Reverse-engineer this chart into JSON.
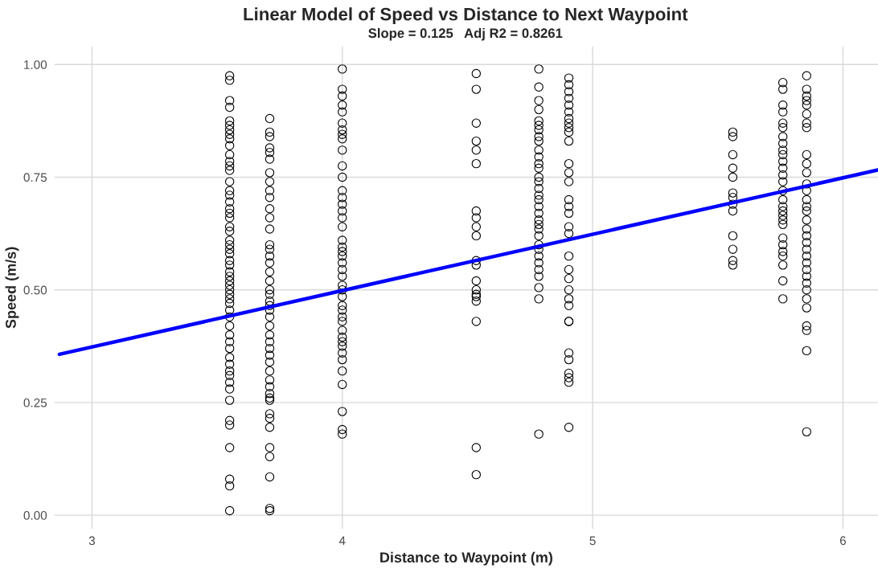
{
  "chart_data": {
    "type": "scatter",
    "title": "Linear Model of Speed vs Distance to Next Waypoint",
    "subtitle": "Slope = 0.125   Adj R2 = 0.8261",
    "xlabel": "Distance to Waypoint (m)",
    "ylabel": "Speed (m/s)",
    "xlim": [
      2.85,
      6.14
    ],
    "ylim": [
      -0.03,
      1.04
    ],
    "xticks": [
      3,
      4,
      5,
      6
    ],
    "yticks": [
      {
        "value": 0,
        "label": "0.00"
      },
      {
        "value": 0.25,
        "label": "0.25"
      },
      {
        "value": 0.5,
        "label": "0.50"
      },
      {
        "value": 0.75,
        "label": "0.75"
      },
      {
        "value": 1,
        "label": "1.00"
      }
    ],
    "grid": true,
    "marker": "circle",
    "series": [
      {
        "color": "#000000",
        "x": [
          3.55,
          3.55,
          3.55,
          3.55,
          3.55,
          3.55,
          3.55,
          3.55,
          3.55,
          3.55,
          3.55,
          3.55,
          3.55,
          3.55,
          3.55,
          3.55,
          3.55,
          3.55,
          3.55,
          3.55,
          3.55,
          3.55,
          3.55,
          3.55,
          3.55,
          3.55,
          3.55,
          3.55,
          3.55,
          3.55,
          3.55,
          3.55,
          3.55,
          3.55,
          3.55,
          3.55,
          3.55,
          3.55,
          3.55,
          3.55,
          3.55,
          3.55,
          3.55,
          3.55,
          3.55,
          3.55,
          3.55,
          3.55,
          3.55,
          3.55,
          3.55,
          3.55,
          3.55,
          3.55,
          3.55,
          3.55
        ],
        "values": [
          0.975,
          0.965,
          0.92,
          0.905,
          0.875,
          0.865,
          0.855,
          0.845,
          0.835,
          0.82,
          0.8,
          0.785,
          0.775,
          0.765,
          0.74,
          0.72,
          0.71,
          0.695,
          0.68,
          0.67,
          0.66,
          0.64,
          0.63,
          0.61,
          0.6,
          0.59,
          0.58,
          0.565,
          0.555,
          0.54,
          0.53,
          0.52,
          0.51,
          0.5,
          0.49,
          0.48,
          0.47,
          0.455,
          0.44,
          0.42,
          0.4,
          0.385,
          0.37,
          0.35,
          0.335,
          0.32,
          0.31,
          0.295,
          0.28,
          0.255,
          0.21,
          0.2,
          0.15,
          0.08,
          0.065,
          0.01
        ]
      },
      {
        "color": "#000000",
        "x": [
          3.71,
          3.71,
          3.71,
          3.71,
          3.71,
          3.71,
          3.71,
          3.71,
          3.71,
          3.71,
          3.71,
          3.71,
          3.71,
          3.71,
          3.71,
          3.71,
          3.71,
          3.71,
          3.71,
          3.71,
          3.71,
          3.71,
          3.71,
          3.71,
          3.71,
          3.71,
          3.71,
          3.71,
          3.71,
          3.71,
          3.71,
          3.71,
          3.71,
          3.71,
          3.71,
          3.71,
          3.71,
          3.71,
          3.71,
          3.71,
          3.71,
          3.71,
          3.71,
          3.71,
          3.71
        ],
        "values": [
          0.88,
          0.85,
          0.84,
          0.815,
          0.805,
          0.79,
          0.76,
          0.74,
          0.72,
          0.705,
          0.68,
          0.66,
          0.635,
          0.6,
          0.59,
          0.575,
          0.56,
          0.54,
          0.52,
          0.5,
          0.49,
          0.475,
          0.465,
          0.455,
          0.44,
          0.42,
          0.4,
          0.385,
          0.37,
          0.355,
          0.34,
          0.32,
          0.3,
          0.285,
          0.27,
          0.26,
          0.255,
          0.225,
          0.215,
          0.195,
          0.15,
          0.13,
          0.085,
          0.015,
          0.01
        ]
      },
      {
        "color": "#000000",
        "x": [
          4.0,
          4.0,
          4.0,
          4.0,
          4.0,
          4.0,
          4.0,
          4.0,
          4.0,
          4.0,
          4.0,
          4.0,
          4.0,
          4.0,
          4.0,
          4.0,
          4.0,
          4.0,
          4.0,
          4.0,
          4.0,
          4.0,
          4.0,
          4.0,
          4.0,
          4.0,
          4.0,
          4.0,
          4.0,
          4.0,
          4.0,
          4.0,
          4.0,
          4.0,
          4.0,
          4.0,
          4.0,
          4.0,
          4.0,
          4.0,
          4.0,
          4.0,
          4.0
        ],
        "values": [
          0.99,
          0.945,
          0.93,
          0.91,
          0.895,
          0.87,
          0.855,
          0.845,
          0.835,
          0.81,
          0.775,
          0.75,
          0.72,
          0.705,
          0.69,
          0.675,
          0.66,
          0.64,
          0.61,
          0.595,
          0.585,
          0.575,
          0.56,
          0.545,
          0.53,
          0.51,
          0.5,
          0.485,
          0.465,
          0.455,
          0.44,
          0.43,
          0.41,
          0.395,
          0.385,
          0.375,
          0.36,
          0.345,
          0.32,
          0.29,
          0.23,
          0.19,
          0.18
        ]
      },
      {
        "color": "#000000",
        "x": [
          4.535,
          4.535,
          4.535,
          4.535,
          4.535,
          4.535,
          4.535,
          4.535,
          4.535,
          4.535,
          4.535,
          4.535,
          4.535,
          4.535,
          4.535,
          4.535,
          4.535,
          4.535,
          4.535,
          4.535
        ],
        "values": [
          0.98,
          0.945,
          0.87,
          0.83,
          0.81,
          0.78,
          0.675,
          0.66,
          0.64,
          0.62,
          0.565,
          0.555,
          0.52,
          0.5,
          0.49,
          0.485,
          0.475,
          0.43,
          0.15,
          0.09
        ]
      },
      {
        "color": "#000000",
        "x": [
          4.785,
          4.785,
          4.785,
          4.785,
          4.785,
          4.785,
          4.785,
          4.785,
          4.785,
          4.785,
          4.785,
          4.785,
          4.785,
          4.785,
          4.785,
          4.785,
          4.785,
          4.785,
          4.785,
          4.785,
          4.785,
          4.785,
          4.785,
          4.785,
          4.785,
          4.785,
          4.785,
          4.785,
          4.785,
          4.785,
          4.785,
          4.785,
          4.785
        ],
        "values": [
          0.99,
          0.95,
          0.92,
          0.9,
          0.875,
          0.865,
          0.855,
          0.84,
          0.83,
          0.81,
          0.795,
          0.78,
          0.77,
          0.75,
          0.74,
          0.725,
          0.71,
          0.7,
          0.685,
          0.67,
          0.655,
          0.645,
          0.635,
          0.62,
          0.6,
          0.59,
          0.575,
          0.56,
          0.545,
          0.53,
          0.505,
          0.48,
          0.18
        ]
      },
      {
        "color": "#000000",
        "x": [
          4.905,
          4.905,
          4.905,
          4.905,
          4.905,
          4.905,
          4.905,
          4.905,
          4.905,
          4.905,
          4.905,
          4.905,
          4.905,
          4.905,
          4.905,
          4.905,
          4.905,
          4.905,
          4.905,
          4.905,
          4.905,
          4.905,
          4.905,
          4.905,
          4.905,
          4.905,
          4.905,
          4.905,
          4.905,
          4.905,
          4.905,
          4.905,
          4.905
        ],
        "values": [
          0.97,
          0.955,
          0.94,
          0.925,
          0.91,
          0.895,
          0.88,
          0.87,
          0.86,
          0.85,
          0.83,
          0.78,
          0.76,
          0.74,
          0.7,
          0.685,
          0.67,
          0.64,
          0.625,
          0.575,
          0.545,
          0.525,
          0.5,
          0.48,
          0.465,
          0.43,
          0.43,
          0.36,
          0.345,
          0.315,
          0.305,
          0.295,
          0.195
        ]
      },
      {
        "color": "#000000",
        "x": [
          5.56,
          5.56,
          5.56,
          5.56,
          5.56,
          5.56,
          5.56,
          5.56,
          5.56,
          5.56,
          5.56,
          5.56,
          5.56
        ],
        "values": [
          0.85,
          0.84,
          0.8,
          0.77,
          0.75,
          0.715,
          0.705,
          0.69,
          0.675,
          0.62,
          0.59,
          0.565,
          0.555
        ]
      },
      {
        "color": "#000000",
        "x": [
          5.76,
          5.76,
          5.76,
          5.76,
          5.76,
          5.76,
          5.76,
          5.76,
          5.76,
          5.76,
          5.76,
          5.76,
          5.76,
          5.76,
          5.76,
          5.76,
          5.76,
          5.76,
          5.76,
          5.76,
          5.76,
          5.76,
          5.76,
          5.76,
          5.76,
          5.76,
          5.76,
          5.76
        ],
        "values": [
          0.96,
          0.945,
          0.91,
          0.895,
          0.87,
          0.86,
          0.84,
          0.825,
          0.81,
          0.8,
          0.785,
          0.77,
          0.755,
          0.74,
          0.72,
          0.7,
          0.685,
          0.675,
          0.665,
          0.655,
          0.645,
          0.615,
          0.6,
          0.585,
          0.575,
          0.555,
          0.52,
          0.48
        ]
      },
      {
        "color": "#000000",
        "x": [
          5.855,
          5.855,
          5.855,
          5.855,
          5.855,
          5.855,
          5.855,
          5.855,
          5.855,
          5.855,
          5.855,
          5.855,
          5.855,
          5.855,
          5.855,
          5.855,
          5.855,
          5.855,
          5.855,
          5.855,
          5.855,
          5.855,
          5.855,
          5.855,
          5.855,
          5.855,
          5.855,
          5.855,
          5.855,
          5.855,
          5.855,
          5.855,
          5.855
        ],
        "values": [
          0.975,
          0.945,
          0.93,
          0.92,
          0.91,
          0.89,
          0.87,
          0.86,
          0.8,
          0.78,
          0.76,
          0.735,
          0.72,
          0.7,
          0.685,
          0.675,
          0.655,
          0.635,
          0.62,
          0.605,
          0.59,
          0.575,
          0.56,
          0.545,
          0.53,
          0.515,
          0.5,
          0.48,
          0.46,
          0.42,
          0.41,
          0.365,
          0.185
        ]
      },
      {
        "type": "line",
        "color": "#0000ff",
        "marker": "none",
        "line_style": "solid",
        "x": [
          2.87,
          6.14
        ],
        "values": [
          0.357,
          0.766
        ]
      }
    ]
  }
}
